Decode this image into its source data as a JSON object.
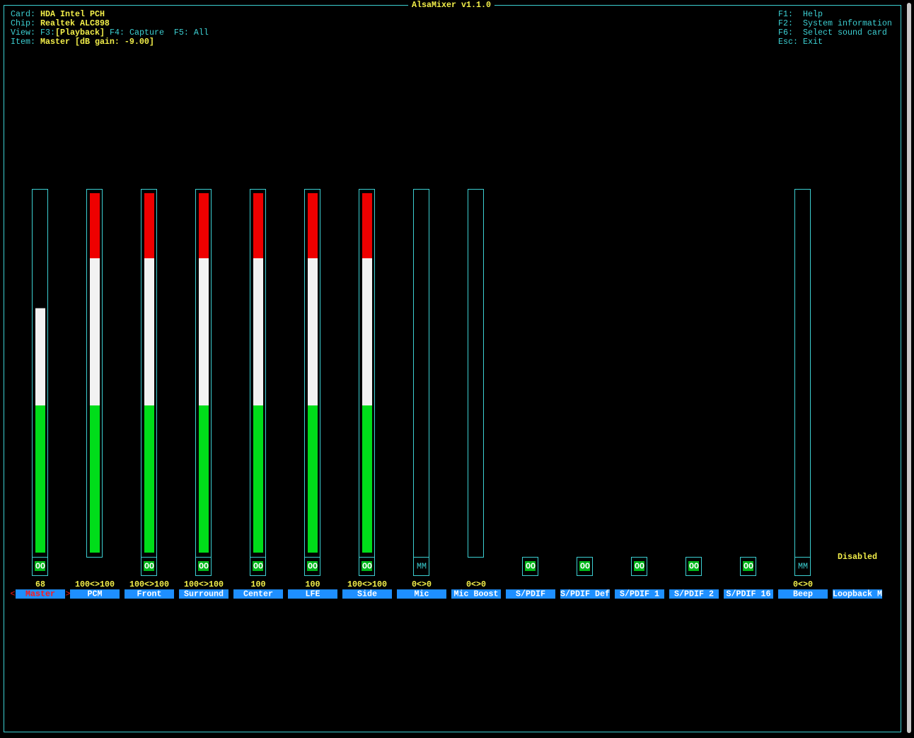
{
  "header": {
    "title": "AlsaMixer v1.1.0"
  },
  "info": {
    "card": {
      "label": "Card:",
      "value": "HDA Intel PCH"
    },
    "chip": {
      "label": "Chip:",
      "value": "Realtek ALC898"
    },
    "view": {
      "label": "View:",
      "key": "F3:",
      "current": "[Playback]",
      "others": "F4: Capture  F5: All"
    },
    "item": {
      "label": "Item:",
      "value": "Master [dB gain: -9.00]"
    }
  },
  "help": [
    {
      "key": "F1:",
      "text": "Help"
    },
    {
      "key": "F2:",
      "text": "System information"
    },
    {
      "key": "F6:",
      "text": "Select sound card"
    },
    {
      "key": "Esc:",
      "text": "Exit"
    }
  ],
  "level_range": [
    0,
    100
  ],
  "selection_markers": [
    "<",
    ">"
  ],
  "channels": [
    {
      "name": "Master",
      "level": 68,
      "switch": {
        "label": "OO",
        "on": true
      },
      "selected": true
    },
    {
      "name": "PCM",
      "level": [
        100,
        100
      ],
      "value_label": "100<>100"
    },
    {
      "name": "Front",
      "level": [
        100,
        100
      ],
      "value_label": "100<>100",
      "switch": {
        "label": "OO",
        "on": true
      }
    },
    {
      "name": "Surround",
      "level": [
        100,
        100
      ],
      "value_label": "100<>100",
      "switch": {
        "label": "OO",
        "on": true
      }
    },
    {
      "name": "Center",
      "level": 100,
      "switch": {
        "label": "OO",
        "on": true
      }
    },
    {
      "name": "LFE",
      "level": 100,
      "switch": {
        "label": "OO",
        "on": true
      }
    },
    {
      "name": "Side",
      "level": [
        100,
        100
      ],
      "value_label": "100<>100",
      "switch": {
        "label": "OO",
        "on": true
      }
    },
    {
      "name": "Mic",
      "level": [
        0,
        0
      ],
      "value_label": "0<>0",
      "switch": {
        "label": "MM",
        "on": false
      }
    },
    {
      "name": "Mic Boost",
      "level": [
        0,
        0
      ],
      "value_label": "0<>0"
    },
    {
      "name": "S/PDIF",
      "switch": {
        "label": "OO",
        "on": true
      }
    },
    {
      "name": "S/PDIF Def",
      "switch": {
        "label": "OO",
        "on": true
      }
    },
    {
      "name": "S/PDIF 1",
      "switch": {
        "label": "OO",
        "on": true
      }
    },
    {
      "name": "S/PDIF 2",
      "switch": {
        "label": "OO",
        "on": true
      }
    },
    {
      "name": "S/PDIF 16",
      "switch": {
        "label": "OO",
        "on": true
      }
    },
    {
      "name": "Beep",
      "level": [
        0,
        0
      ],
      "value_label": "0<>0",
      "switch": {
        "label": "MM",
        "on": false
      }
    },
    {
      "name": "Loopback M",
      "status": "Disabled"
    }
  ]
}
